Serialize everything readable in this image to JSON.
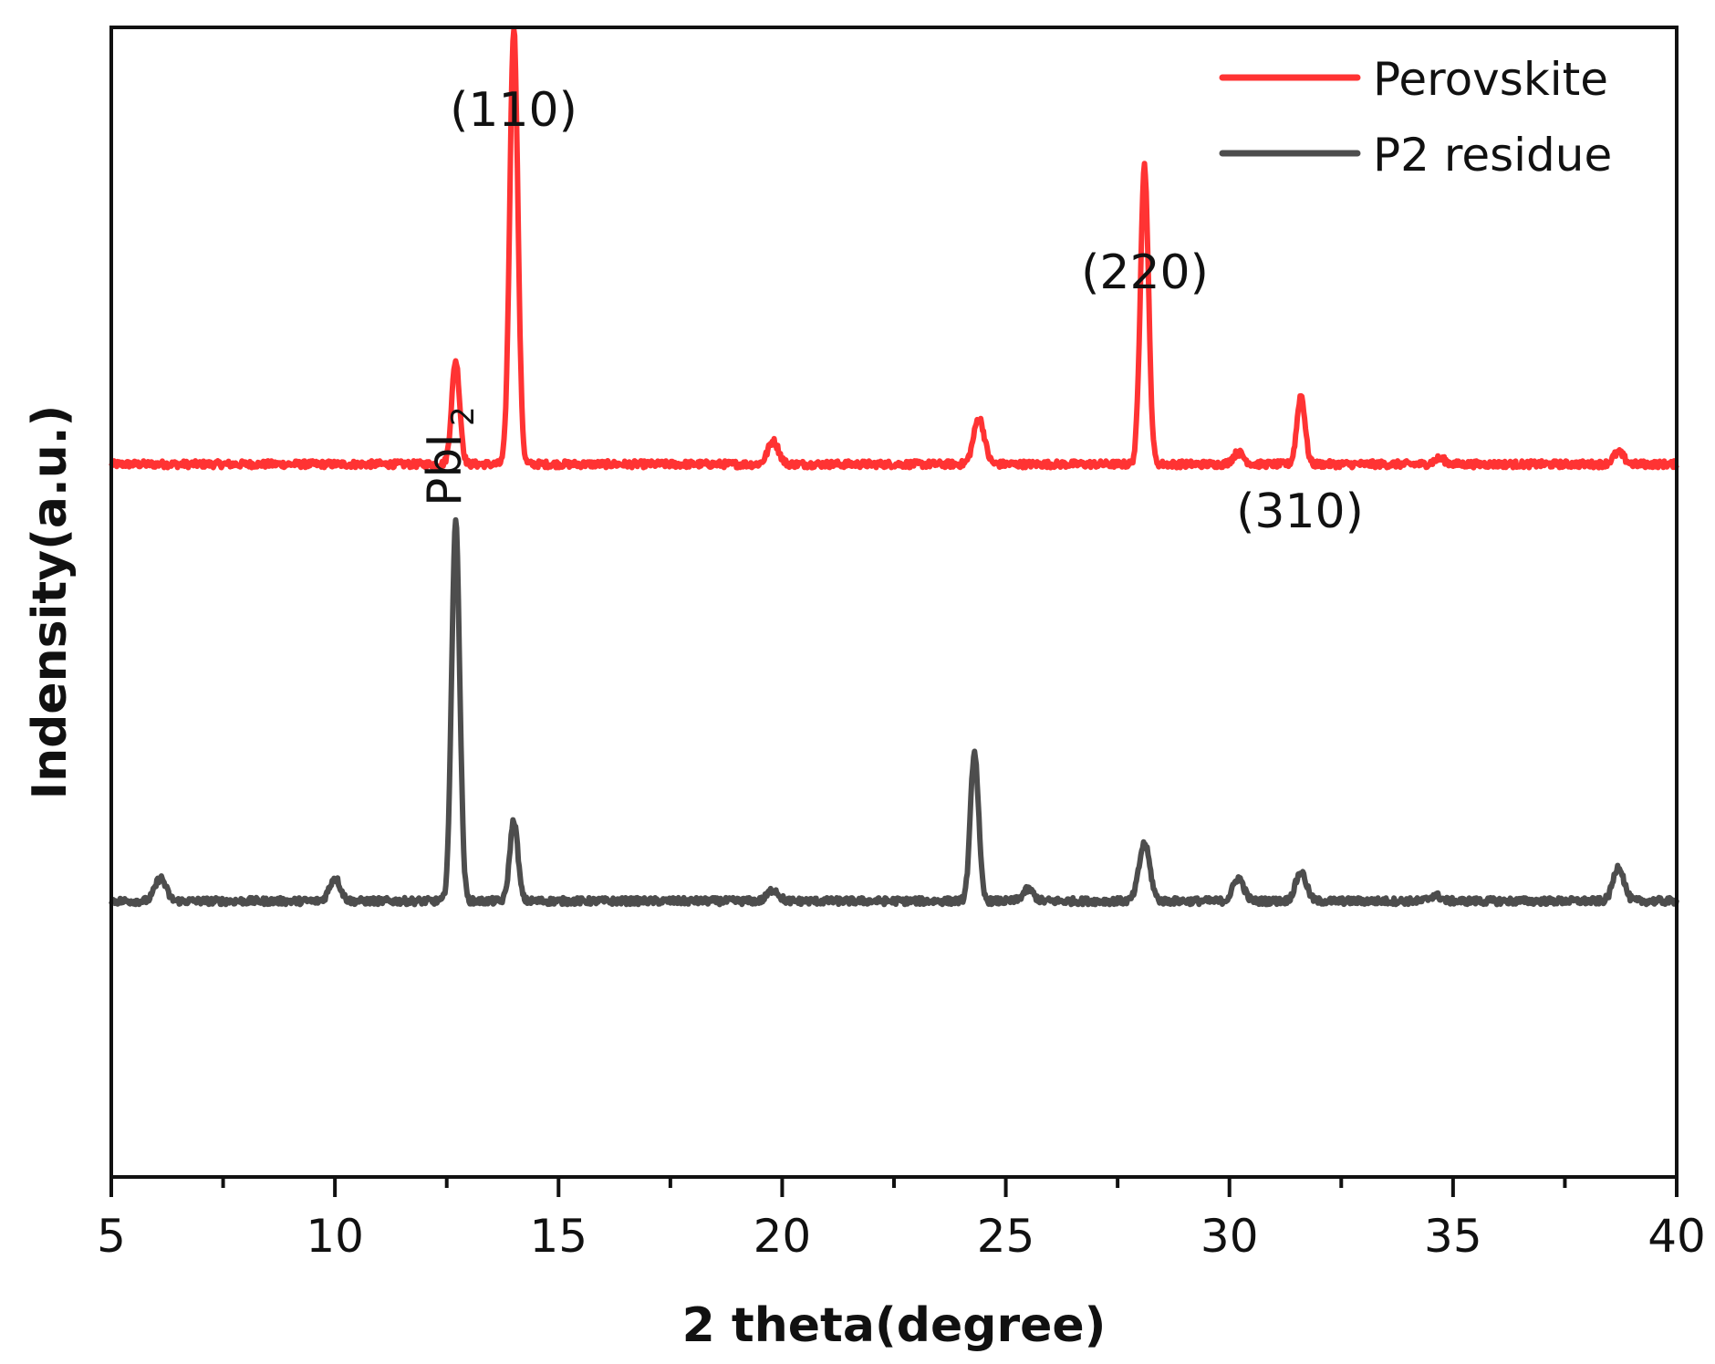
{
  "chart_data": {
    "type": "line",
    "title": "",
    "xlabel": "2 theta(degree)",
    "ylabel": "Indensity(a.u.)",
    "xlim": [
      5,
      40
    ],
    "xticks": [
      5,
      10,
      15,
      20,
      25,
      30,
      35,
      40
    ],
    "xtick_labels": [
      "5",
      "10",
      "15",
      "20",
      "25",
      "30",
      "35",
      "40"
    ],
    "minor_xticks": [
      7.5,
      12.5,
      17.5,
      22.5,
      27.5,
      32.5,
      37.5
    ],
    "yticks": [],
    "grid": false,
    "legend_position": "upper right",
    "series": [
      {
        "name": "Perovskite",
        "color": "#ff3333",
        "baseline": 0.62,
        "peaks": [
          {
            "x": 12.7,
            "y": 0.71,
            "label": "PbI2"
          },
          {
            "x": 14.0,
            "y": 1.0,
            "label": "(110)"
          },
          {
            "x": 19.8,
            "y": 0.64
          },
          {
            "x": 24.4,
            "y": 0.66
          },
          {
            "x": 28.1,
            "y": 0.88,
            "label": "(220)"
          },
          {
            "x": 30.2,
            "y": 0.63
          },
          {
            "x": 31.6,
            "y": 0.68,
            "label": "(310)"
          },
          {
            "x": 34.7,
            "y": 0.625
          },
          {
            "x": 38.7,
            "y": 0.63
          }
        ]
      },
      {
        "name": "P2 residue",
        "color": "#4d4d4d",
        "baseline": 0.24,
        "peaks": [
          {
            "x": 6.1,
            "y": 0.26
          },
          {
            "x": 10.0,
            "y": 0.26
          },
          {
            "x": 12.7,
            "y": 0.57
          },
          {
            "x": 14.0,
            "y": 0.31
          },
          {
            "x": 19.8,
            "y": 0.25
          },
          {
            "x": 24.3,
            "y": 0.37
          },
          {
            "x": 25.5,
            "y": 0.25
          },
          {
            "x": 28.1,
            "y": 0.29
          },
          {
            "x": 30.2,
            "y": 0.26
          },
          {
            "x": 31.6,
            "y": 0.265
          },
          {
            "x": 34.6,
            "y": 0.245
          },
          {
            "x": 38.7,
            "y": 0.27
          }
        ]
      }
    ],
    "annotations": [
      {
        "text": "(110)",
        "x": 14.0
      },
      {
        "text": "PbI",
        "subscript": "2",
        "x": 12.7,
        "rotation": -90
      },
      {
        "text": "(220)",
        "x": 28.1
      },
      {
        "text": "(310)",
        "x": 31.6
      }
    ]
  },
  "legend": {
    "items": [
      {
        "label": "Perovskite",
        "color": "#ff3333"
      },
      {
        "label": "P2 residue",
        "color": "#4d4d4d"
      }
    ]
  },
  "axes": {
    "xlabel": "2 theta(degree)",
    "ylabel": "Indensity(a.u.)"
  },
  "labels": {
    "p110": "(110)",
    "p220": "(220)",
    "p310": "(310)",
    "pbi": "PbI",
    "pbi_sub": "2"
  }
}
